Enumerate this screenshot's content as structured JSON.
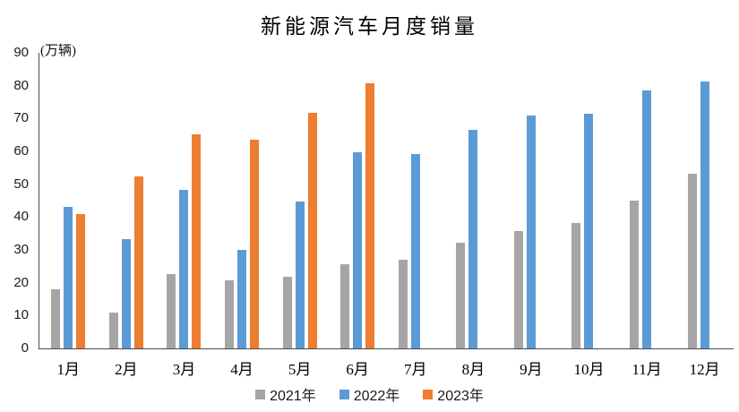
{
  "chart_data": {
    "type": "bar",
    "title": "新能源汽车月度销量",
    "unit_label": "(万辆)",
    "xlabel": "",
    "ylabel": "万辆",
    "categories": [
      "1月",
      "2月",
      "3月",
      "4月",
      "5月",
      "6月",
      "7月",
      "8月",
      "9月",
      "10月",
      "11月",
      "12月"
    ],
    "series": [
      {
        "name": "2021年",
        "color": "#A5A5A5",
        "values": [
          17.9,
          11.0,
          22.6,
          20.6,
          21.7,
          25.6,
          27.1,
          32.1,
          35.7,
          38.3,
          45.0,
          53.1
        ]
      },
      {
        "name": "2022年",
        "color": "#5B9BD5",
        "values": [
          43.1,
          33.4,
          48.4,
          29.9,
          44.7,
          59.6,
          59.3,
          66.6,
          70.8,
          71.4,
          78.6,
          81.4
        ]
      },
      {
        "name": "2023年",
        "color": "#ED7D31",
        "values": [
          40.8,
          52.5,
          65.3,
          63.6,
          71.7,
          80.6,
          null,
          null,
          null,
          null,
          null,
          null
        ]
      }
    ],
    "y_axis": {
      "min": 0,
      "max": 90,
      "tick_step": 10,
      "tick_labels": [
        "0",
        "10",
        "20",
        "30",
        "40",
        "50",
        "60",
        "70",
        "80",
        "90"
      ]
    },
    "legend_position": "bottom",
    "gridlines": false,
    "axis_color": "#4a4a4a"
  }
}
